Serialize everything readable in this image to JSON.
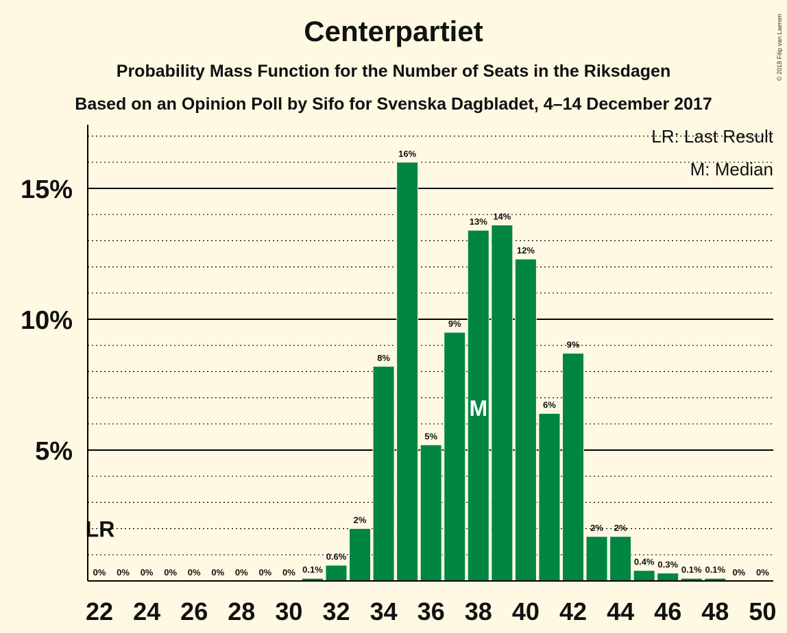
{
  "header": {
    "title": "Centerpartiet",
    "subtitle1": "Probability Mass Function for the Number of Seats in the Riksdagen",
    "subtitle2": "Based on an Opinion Poll by Sifo for Svenska Dagbladet, 4–14 December 2017",
    "copyright": "© 2018 Filip van Laenen"
  },
  "legend": {
    "last_result": "LR: Last Result",
    "median": "M: Median"
  },
  "colors": {
    "background": "#FFF9E3",
    "bar": "#008542",
    "axis": "#000000"
  },
  "chart_data": {
    "type": "bar",
    "x": [
      22,
      23,
      24,
      25,
      26,
      27,
      28,
      29,
      30,
      31,
      32,
      33,
      34,
      35,
      36,
      37,
      38,
      39,
      40,
      41,
      42,
      43,
      44,
      45,
      46,
      47,
      48,
      49,
      50
    ],
    "values": [
      0,
      0,
      0,
      0,
      0,
      0,
      0,
      0,
      0,
      0.1,
      0.6,
      2.0,
      8.2,
      16.0,
      5.2,
      9.5,
      13.4,
      13.6,
      12.3,
      6.4,
      8.7,
      1.7,
      1.7,
      0.4,
      0.3,
      0.1,
      0.1,
      0,
      0
    ],
    "labels": [
      "0%",
      "0%",
      "0%",
      "0%",
      "0%",
      "0%",
      "0%",
      "0%",
      "0%",
      "0.1%",
      "0.6%",
      "2%",
      "8%",
      "16%",
      "5%",
      "9%",
      "13%",
      "14%",
      "12%",
      "6%",
      "9%",
      "2%",
      "2%",
      "0.4%",
      "0.3%",
      "0.1%",
      "0.1%",
      "0%",
      "0%"
    ],
    "x_tick_labels": [
      "22",
      "24",
      "26",
      "28",
      "30",
      "32",
      "34",
      "36",
      "38",
      "40",
      "42",
      "44",
      "46",
      "48",
      "50"
    ],
    "y_ticks": [
      0,
      5,
      10,
      15
    ],
    "y_tick_labels": [
      "",
      "5%",
      "10%",
      "15%"
    ],
    "y_minor_step": 1,
    "ylim": [
      0,
      17
    ],
    "median_seat": 38,
    "median_marker": "M",
    "last_result_seat": 22,
    "last_result_marker": "LR",
    "last_result_value": 2
  }
}
